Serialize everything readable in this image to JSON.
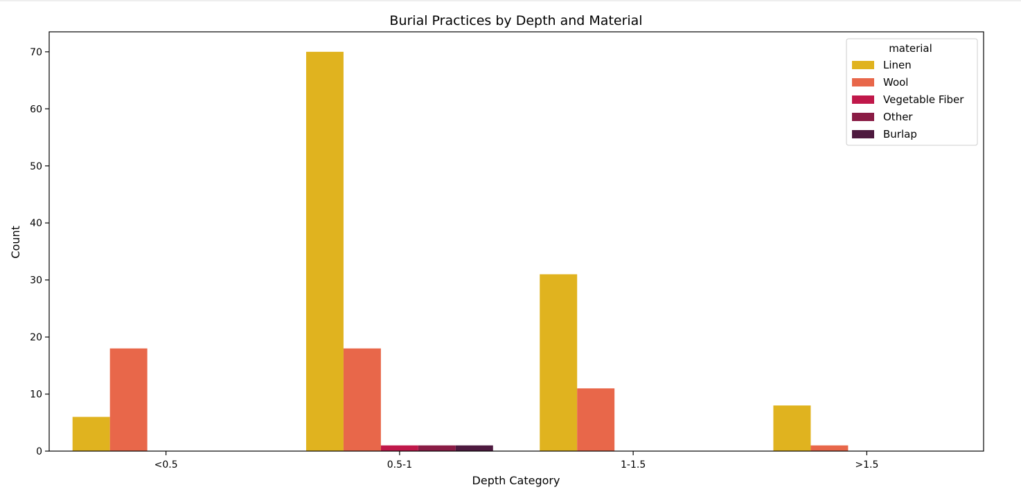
{
  "chart_data": {
    "type": "bar",
    "title": "Burial Practices by Depth and Material",
    "xlabel": "Depth Category",
    "ylabel": "Count",
    "categories": [
      "<0.5",
      "0.5-1",
      "1-1.5",
      ">1.5"
    ],
    "ylim": [
      0,
      73.5
    ],
    "yticks": [
      0,
      10,
      20,
      30,
      40,
      50,
      60,
      70
    ],
    "grid": false,
    "legend": {
      "title": "material",
      "placement": "top-right"
    },
    "series": [
      {
        "name": "Linen",
        "color": "#e0b31f",
        "values": [
          6,
          70,
          31,
          8
        ]
      },
      {
        "name": "Wool",
        "color": "#e8674a",
        "values": [
          18,
          18,
          11,
          1
        ]
      },
      {
        "name": "Vegetable Fiber",
        "color": "#c0184a",
        "values": [
          0,
          1,
          0,
          0
        ]
      },
      {
        "name": "Other",
        "color": "#8a1c45",
        "values": [
          0,
          1,
          0,
          0
        ]
      },
      {
        "name": "Burlap",
        "color": "#4e1a3f",
        "values": [
          0,
          1,
          0,
          0
        ]
      }
    ]
  }
}
